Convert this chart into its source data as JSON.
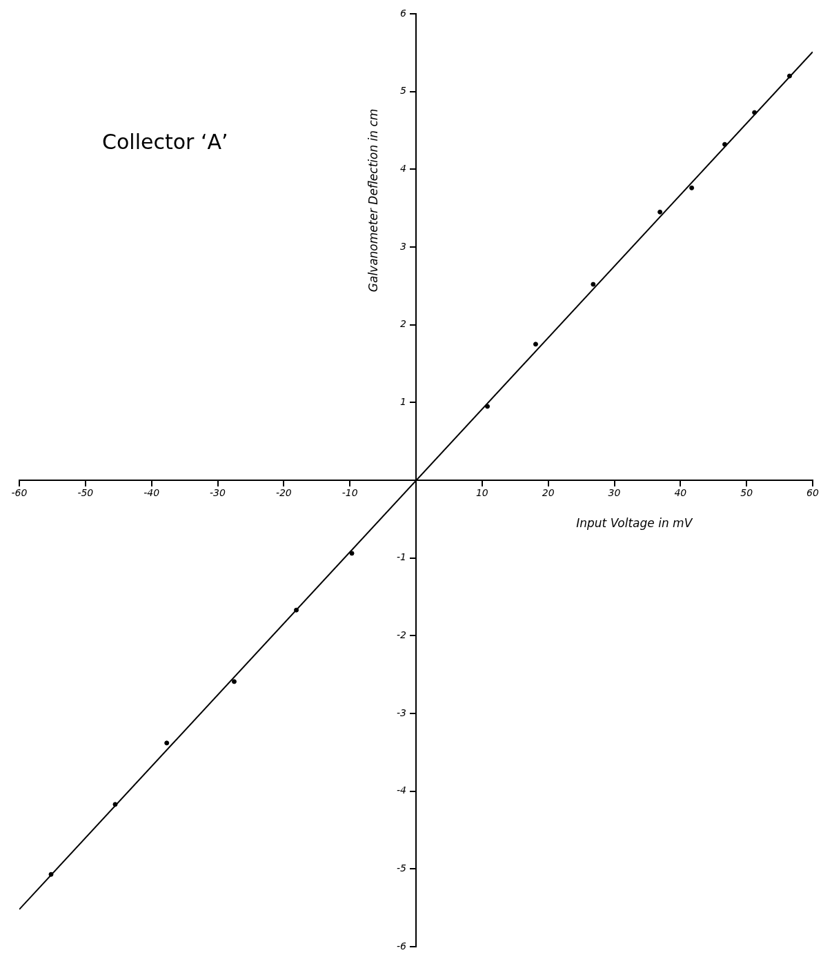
{
  "chart_data": {
    "type": "scatter",
    "title": "Collector ‘A’",
    "xlabel": "Input Voltage in mV",
    "ylabel": "Galvanometer Deflection in cm",
    "xlim": [
      -60,
      60
    ],
    "ylim": [
      -6,
      6
    ],
    "xticks": [
      -60,
      -50,
      -40,
      -30,
      -20,
      -10,
      10,
      20,
      30,
      40,
      50,
      60
    ],
    "yticks": [
      -6,
      -5,
      -4,
      -3,
      -2,
      -1,
      1,
      2,
      3,
      4,
      5,
      6
    ],
    "grid": false,
    "legend": false,
    "marker": "circle",
    "series": [
      {
        "color": "#000000",
        "x": [
          -55.2,
          -45.5,
          -37.7,
          -27.5,
          -18.1,
          -9.7,
          10.8,
          18.1,
          26.8,
          36.9,
          41.7,
          46.7,
          51.2,
          56.5
        ],
        "values": [
          -5.07,
          -4.17,
          -3.38,
          -2.59,
          -1.67,
          -0.94,
          0.95,
          1.75,
          2.52,
          3.45,
          3.76,
          4.32,
          4.73,
          5.2
        ]
      },
      {
        "type": "line",
        "marker": "none",
        "color": "#000000",
        "x": [
          -60,
          60
        ],
        "values": [
          -5.52,
          5.51
        ]
      }
    ]
  }
}
